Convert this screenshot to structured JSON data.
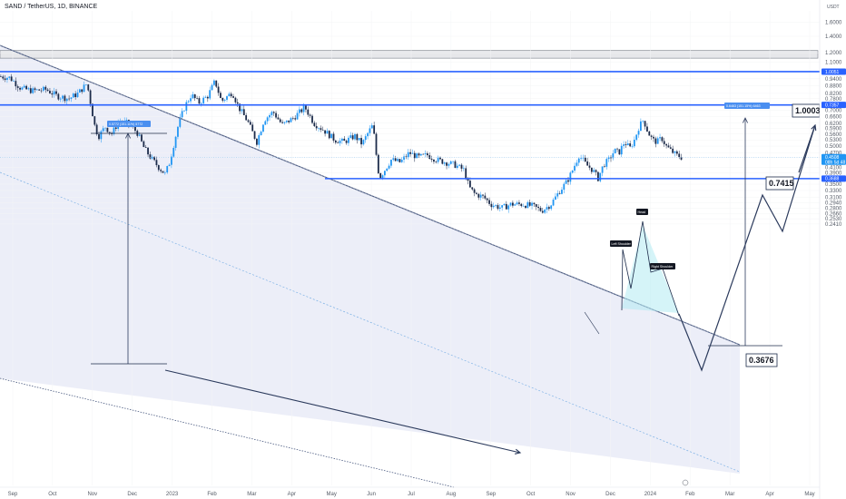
{
  "header": {
    "title": "SAND / TetherUS, 1D, BINANCE",
    "currency": "USDT"
  },
  "colors": {
    "up": "#2196f3",
    "down": "#1c2b4a",
    "level": "#2962ff",
    "channel_fill": "#e9ebf7",
    "triangle": "#b2ebf2"
  },
  "chart_data": {
    "type": "candlestick",
    "title": "SAND / TetherUS, 1D, BINANCE",
    "y_scale": "log",
    "ylim": [
      0.2344,
      1.7
    ],
    "y_ticks": [
      "1.6000",
      "1.4000",
      "1.2000",
      "1.1000",
      "1.0051",
      "0.9400",
      "0.8800",
      "0.8200",
      "0.7800",
      "0.7357",
      "0.7000",
      "0.6600",
      "0.6200",
      "0.5900",
      "0.5600",
      "0.5300",
      "0.5000",
      "0.4700",
      "0.4508",
      "0.4100",
      "0.3900",
      "0.3688",
      "0.3500",
      "0.3300",
      "0.3100",
      "0.2940",
      "0.2800",
      "0.2660",
      "0.2530",
      "0.2410"
    ],
    "x_ticks": [
      "Sep",
      "Oct",
      "Nov",
      "Dec",
      "2023",
      "Feb",
      "Mar",
      "Apr",
      "May",
      "Jun",
      "Jul",
      "Aug",
      "Sep",
      "Oct",
      "Nov",
      "Dec",
      "2024",
      "Feb",
      "Mar",
      "Apr",
      "May"
    ],
    "price_labels": [
      {
        "value": 1.0051,
        "label": "1.0051"
      },
      {
        "value": 0.7357,
        "label": "0.7357"
      },
      {
        "value": 0.4508,
        "label": "0.4508",
        "sub": "08h 5d 48"
      },
      {
        "value": 0.3688,
        "label": "0.3688"
      }
    ],
    "levels": [
      1.0051,
      0.7357,
      0.3688
    ],
    "zone": [
      1.1403,
      1.2257
    ],
    "measure_labels": [
      "0.5772 (151.11%) 5772",
      "0.6463 (151.15%) 6463"
    ],
    "targets": [
      {
        "value": 1.0003,
        "label": "1.0003"
      },
      {
        "value": 0.7415,
        "label": "0.7415"
      },
      {
        "value": 0.3676,
        "label": "0.3676"
      }
    ],
    "pattern_labels": [
      "Left Shoulder",
      "Head",
      "Right Shoulder"
    ],
    "anchors": [
      {
        "x": 0,
        "y": 0.96
      },
      {
        "x": 10,
        "y": 0.95
      },
      {
        "x": 22,
        "y": 0.86
      },
      {
        "x": 35,
        "y": 0.84
      },
      {
        "x": 50,
        "y": 0.85
      },
      {
        "x": 62,
        "y": 0.8
      },
      {
        "x": 75,
        "y": 0.78
      },
      {
        "x": 85,
        "y": 0.82
      },
      {
        "x": 95,
        "y": 0.9
      },
      {
        "x": 100,
        "y": 0.71
      },
      {
        "x": 104,
        "y": 0.59
      },
      {
        "x": 108,
        "y": 0.55
      },
      {
        "x": 115,
        "y": 0.6
      },
      {
        "x": 122,
        "y": 0.56
      },
      {
        "x": 130,
        "y": 0.63
      },
      {
        "x": 140,
        "y": 0.62
      },
      {
        "x": 150,
        "y": 0.57
      },
      {
        "x": 158,
        "y": 0.49
      },
      {
        "x": 165,
        "y": 0.45
      },
      {
        "x": 174,
        "y": 0.41
      },
      {
        "x": 181,
        "y": 0.385
      },
      {
        "x": 186,
        "y": 0.43
      },
      {
        "x": 190,
        "y": 0.5
      },
      {
        "x": 196,
        "y": 0.62
      },
      {
        "x": 203,
        "y": 0.73
      },
      {
        "x": 210,
        "y": 0.81
      },
      {
        "x": 218,
        "y": 0.75
      },
      {
        "x": 228,
        "y": 0.8
      },
      {
        "x": 236,
        "y": 0.92
      },
      {
        "x": 243,
        "y": 0.76
      },
      {
        "x": 255,
        "y": 0.83
      },
      {
        "x": 262,
        "y": 0.72
      },
      {
        "x": 272,
        "y": 0.63
      },
      {
        "x": 282,
        "y": 0.52
      },
      {
        "x": 290,
        "y": 0.64
      },
      {
        "x": 300,
        "y": 0.69
      },
      {
        "x": 310,
        "y": 0.61
      },
      {
        "x": 322,
        "y": 0.65
      },
      {
        "x": 335,
        "y": 0.72
      },
      {
        "x": 345,
        "y": 0.62
      },
      {
        "x": 356,
        "y": 0.58
      },
      {
        "x": 368,
        "y": 0.53
      },
      {
        "x": 378,
        "y": 0.52
      },
      {
        "x": 390,
        "y": 0.55
      },
      {
        "x": 398,
        "y": 0.51
      },
      {
        "x": 405,
        "y": 0.57
      },
      {
        "x": 410,
        "y": 0.61
      },
      {
        "x": 413,
        "y": 0.48
      },
      {
        "x": 417,
        "y": 0.37
      },
      {
        "x": 421,
        "y": 0.39
      },
      {
        "x": 430,
        "y": 0.44
      },
      {
        "x": 440,
        "y": 0.43
      },
      {
        "x": 450,
        "y": 0.47
      },
      {
        "x": 460,
        "y": 0.45
      },
      {
        "x": 470,
        "y": 0.46
      },
      {
        "x": 480,
        "y": 0.44
      },
      {
        "x": 490,
        "y": 0.43
      },
      {
        "x": 500,
        "y": 0.42
      },
      {
        "x": 510,
        "y": 0.4
      },
      {
        "x": 516,
        "y": 0.34
      },
      {
        "x": 522,
        "y": 0.32
      },
      {
        "x": 532,
        "y": 0.31
      },
      {
        "x": 540,
        "y": 0.29
      },
      {
        "x": 552,
        "y": 0.28
      },
      {
        "x": 562,
        "y": 0.29
      },
      {
        "x": 575,
        "y": 0.29
      },
      {
        "x": 586,
        "y": 0.285
      },
      {
        "x": 596,
        "y": 0.273
      },
      {
        "x": 606,
        "y": 0.29
      },
      {
        "x": 616,
        "y": 0.33
      },
      {
        "x": 624,
        "y": 0.36
      },
      {
        "x": 630,
        "y": 0.4
      },
      {
        "x": 637,
        "y": 0.46
      },
      {
        "x": 645,
        "y": 0.42
      },
      {
        "x": 652,
        "y": 0.4
      },
      {
        "x": 658,
        "y": 0.37
      },
      {
        "x": 664,
        "y": 0.42
      },
      {
        "x": 670,
        "y": 0.44
      },
      {
        "x": 676,
        "y": 0.48
      },
      {
        "x": 681,
        "y": 0.47
      },
      {
        "x": 687,
        "y": 0.52
      },
      {
        "x": 693,
        "y": 0.49
      },
      {
        "x": 698,
        "y": 0.53
      },
      {
        "x": 703,
        "y": 0.6
      },
      {
        "x": 708,
        "y": 0.64
      },
      {
        "x": 713,
        "y": 0.57
      },
      {
        "x": 718,
        "y": 0.53
      },
      {
        "x": 723,
        "y": 0.52
      },
      {
        "x": 728,
        "y": 0.54
      },
      {
        "x": 733,
        "y": 0.5
      },
      {
        "x": 738,
        "y": 0.48
      },
      {
        "x": 744,
        "y": 0.46
      },
      {
        "x": 750,
        "y": 0.45
      }
    ]
  }
}
